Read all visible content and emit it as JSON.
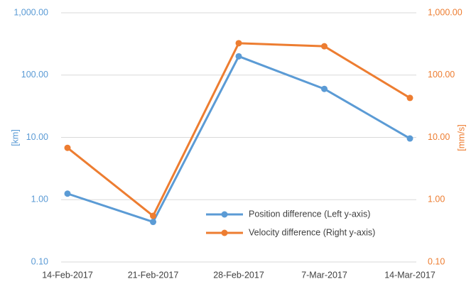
{
  "chart_data": {
    "type": "line",
    "categories": [
      "14-Feb-2017",
      "21-Feb-2017",
      "28-Feb-2017",
      "7-Mar-2017",
      "14-Mar-2017"
    ],
    "series": [
      {
        "name": "Position difference (Left y-axis)",
        "color": "#5b9bd5",
        "values": [
          1.25,
          0.44,
          200,
          60,
          9.6
        ]
      },
      {
        "name": "Velocity difference (Right y-axis)",
        "color": "#ed7d31",
        "axis": "y2",
        "values": [
          6.8,
          0.55,
          325,
          290,
          43
        ]
      }
    ],
    "ylabel": "[km]",
    "y2label": "[mm/s]",
    "log_scale": true,
    "ylim": [
      0.1,
      1000
    ],
    "yticks": [
      {
        "value": 0.1,
        "label": "0.10"
      },
      {
        "value": 1,
        "label": "1.00"
      },
      {
        "value": 10,
        "label": "10.00"
      },
      {
        "value": 100,
        "label": "100.00"
      },
      {
        "value": 1000,
        "label": "1,000.00"
      }
    ],
    "y2lim": [
      0.1,
      1000
    ],
    "y2ticks": [
      {
        "value": 0.1,
        "label": "0.10"
      },
      {
        "value": 1,
        "label": "1.00"
      },
      {
        "value": 10,
        "label": "10.00"
      },
      {
        "value": 100,
        "label": "100.00"
      },
      {
        "value": 1000,
        "label": "1,000.00"
      }
    ],
    "ycolor": "#5b9bd5",
    "y2color": "#ed7d31",
    "grid": true,
    "legend": "lower-right"
  }
}
